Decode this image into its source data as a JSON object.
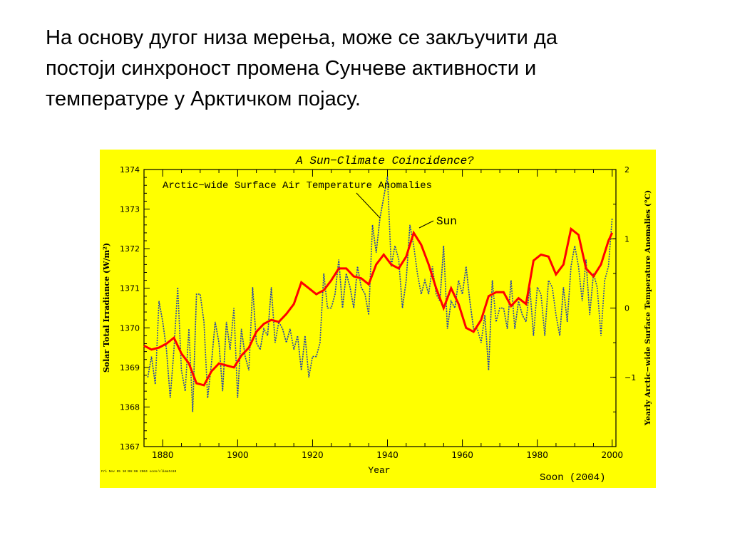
{
  "slide": {
    "lines": [
      "На основу дугог низа мерења, може се закључити да",
      "постоји синхроност промена Сунчеве активности и",
      "температуре у Арктичком појасу."
    ]
  },
  "chart_data": {
    "type": "line",
    "title": "A Sun−Climate Coincidence?",
    "xlabel": "Year",
    "ylabel_left": "Solar Total Irradiance (W/m²)",
    "ylabel_right": "Yearly Arctic−wide Surface Temperature Anomalies (°C)",
    "xlim": [
      1875,
      2001
    ],
    "ylim_left": [
      1367,
      1374
    ],
    "ylim_right": [
      -2,
      2
    ],
    "x_ticks": [
      "1880",
      "1900",
      "1920",
      "1940",
      "1960",
      "1980",
      "2000"
    ],
    "y_ticks_left": [
      "1367",
      "1368",
      "1369",
      "1370",
      "1371",
      "1372",
      "1373",
      "1374"
    ],
    "y_ticks_right": [
      "−1",
      "0",
      "1",
      "2"
    ],
    "annotations": {
      "temp_label": "Arctic−wide Surface Air Temperature Anomalies",
      "sun_label": "Sun",
      "source": "Soon (2004)",
      "stamp": "Fri Nov 05 10:06:06 2004 soon/climate10"
    },
    "background_color": "#ffff00",
    "grid": false,
    "series": [
      {
        "name": "Sun",
        "axis": "left",
        "color": "#ff0000",
        "x": [
          1875,
          1877,
          1879,
          1881,
          1883,
          1885,
          1887,
          1889,
          1891,
          1893,
          1895,
          1897,
          1899,
          1901,
          1903,
          1905,
          1907,
          1909,
          1911,
          1913,
          1915,
          1917,
          1919,
          1921,
          1923,
          1925,
          1927,
          1929,
          1931,
          1933,
          1935,
          1937,
          1939,
          1941,
          1943,
          1945,
          1947,
          1949,
          1951,
          1953,
          1955,
          1957,
          1959,
          1961,
          1963,
          1965,
          1967,
          1969,
          1971,
          1973,
          1975,
          1977,
          1979,
          1981,
          1983,
          1985,
          1987,
          1989,
          1991,
          1993,
          1995,
          1997,
          1999,
          2000
        ],
        "y": [
          1369.55,
          1369.45,
          1369.5,
          1369.6,
          1369.75,
          1369.35,
          1369.1,
          1368.6,
          1368.55,
          1368.9,
          1369.1,
          1369.05,
          1369.0,
          1369.3,
          1369.5,
          1369.9,
          1370.1,
          1370.2,
          1370.15,
          1370.35,
          1370.6,
          1371.15,
          1371.0,
          1370.85,
          1370.95,
          1371.2,
          1371.5,
          1371.5,
          1371.3,
          1371.25,
          1371.1,
          1371.6,
          1371.85,
          1371.6,
          1371.5,
          1371.8,
          1372.4,
          1372.1,
          1371.6,
          1371.0,
          1370.5,
          1371.0,
          1370.6,
          1370.0,
          1369.9,
          1370.2,
          1370.8,
          1370.9,
          1370.9,
          1370.55,
          1370.75,
          1370.6,
          1371.7,
          1371.85,
          1371.8,
          1371.35,
          1371.6,
          1372.5,
          1372.35,
          1371.5,
          1371.3,
          1371.6,
          1372.2,
          1372.4
        ]
      },
      {
        "name": "Arctic−wide Surface Air Temperature Anomalies",
        "axis": "right",
        "color": "#1f3fb0",
        "x": [
          1876,
          1877,
          1878,
          1879,
          1880,
          1881,
          1882,
          1883,
          1884,
          1885,
          1886,
          1887,
          1888,
          1889,
          1890,
          1891,
          1892,
          1893,
          1894,
          1895,
          1896,
          1897,
          1898,
          1899,
          1900,
          1901,
          1902,
          1903,
          1904,
          1905,
          1906,
          1907,
          1908,
          1909,
          1910,
          1911,
          1912,
          1913,
          1914,
          1915,
          1916,
          1917,
          1918,
          1919,
          1920,
          1921,
          1922,
          1923,
          1924,
          1925,
          1926,
          1927,
          1928,
          1929,
          1930,
          1931,
          1932,
          1933,
          1934,
          1935,
          1936,
          1937,
          1938,
          1939,
          1940,
          1941,
          1942,
          1943,
          1944,
          1945,
          1946,
          1947,
          1948,
          1949,
          1950,
          1951,
          1952,
          1953,
          1954,
          1955,
          1956,
          1957,
          1958,
          1959,
          1960,
          1961,
          1962,
          1963,
          1964,
          1965,
          1966,
          1967,
          1968,
          1969,
          1970,
          1971,
          1972,
          1973,
          1974,
          1975,
          1976,
          1977,
          1978,
          1979,
          1980,
          1981,
          1982,
          1983,
          1984,
          1985,
          1986,
          1987,
          1988,
          1989,
          1990,
          1991,
          1992,
          1993,
          1994,
          1995,
          1996,
          1997,
          1998,
          1999,
          2000
        ],
        "y": [
          -1.0,
          -0.7,
          -1.1,
          0.1,
          -0.2,
          -0.6,
          -1.3,
          -0.6,
          0.3,
          -0.9,
          -1.2,
          -0.3,
          -1.5,
          0.2,
          0.2,
          -0.2,
          -1.3,
          -0.8,
          -0.2,
          -0.5,
          -1.2,
          -0.2,
          -0.6,
          0.0,
          -1.3,
          -0.3,
          -0.7,
          -0.9,
          0.3,
          -0.5,
          -0.6,
          -0.3,
          -0.4,
          0.3,
          -0.5,
          -0.2,
          -0.3,
          -0.5,
          -0.3,
          -0.6,
          -0.4,
          -0.9,
          -0.4,
          -1.0,
          -0.7,
          -0.7,
          -0.5,
          0.5,
          0.0,
          0.0,
          0.2,
          0.7,
          0.0,
          0.5,
          0.3,
          0.0,
          0.6,
          0.3,
          0.2,
          -0.1,
          1.2,
          0.8,
          1.3,
          1.6,
          1.9,
          0.6,
          0.9,
          0.7,
          0.0,
          0.4,
          1.2,
          0.9,
          0.5,
          0.2,
          0.4,
          0.2,
          0.6,
          0.2,
          0.1,
          0.9,
          -0.3,
          0.1,
          0.0,
          0.4,
          0.2,
          0.6,
          0.1,
          -0.3,
          -0.3,
          -0.5,
          -0.1,
          -0.9,
          0.4,
          -0.2,
          0.0,
          0.0,
          -0.3,
          0.4,
          -0.3,
          0.1,
          -0.1,
          -0.2,
          0.3,
          -0.4,
          0.3,
          0.2,
          -0.4,
          0.4,
          0.3,
          -0.1,
          -0.4,
          0.3,
          -0.2,
          0.6,
          0.9,
          0.6,
          0.1,
          0.7,
          -0.1,
          0.5,
          0.3,
          -0.4,
          0.4,
          0.6,
          1.3
        ]
      }
    ]
  }
}
